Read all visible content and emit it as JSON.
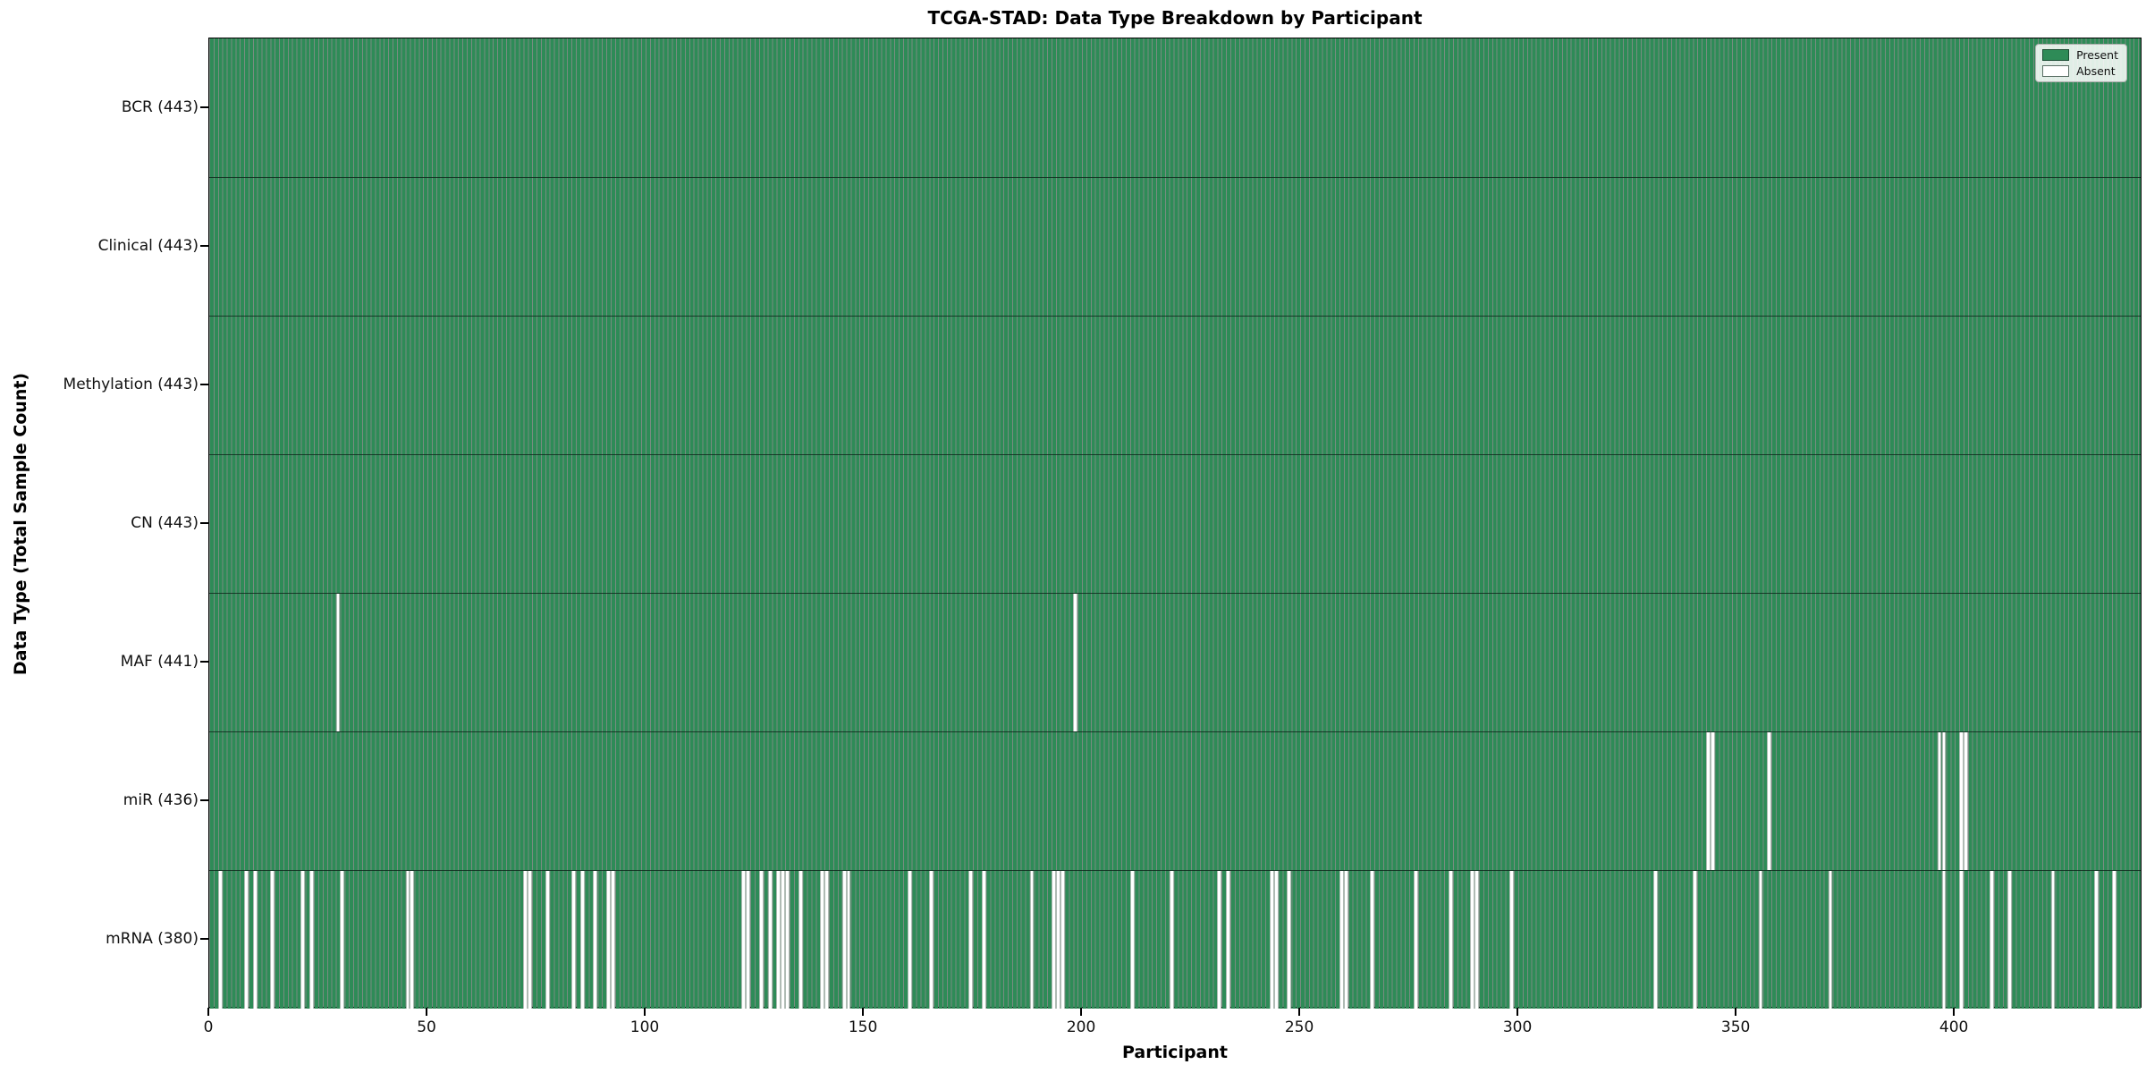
{
  "title": "TCGA-STAD: Data Type Breakdown by Participant",
  "xlabel": "Participant",
  "ylabel": "Data Type (Total Sample Count)",
  "legend": {
    "present_label": "Present",
    "absent_label": "Absent"
  },
  "colors": {
    "present": "#2e8b57",
    "absent": "#ffffff",
    "bar_edge": "rgba(10,45,26,0.55)",
    "spine": "#000000"
  },
  "chart_data": {
    "type": "heatmap",
    "description": "Per-participant data availability matrix; green vertical bar = sample present, white gap = sample absent",
    "n_participants": 443,
    "x_ticks": [
      0,
      50,
      100,
      150,
      200,
      250,
      300,
      350,
      400
    ],
    "x_range": [
      0,
      443
    ],
    "grid": false,
    "legend_position": "upper right",
    "rows": [
      {
        "data_type": "BCR",
        "label": "BCR (443)",
        "total": 443,
        "absent_participants": []
      },
      {
        "data_type": "Clinical",
        "label": "Clinical (443)",
        "total": 443,
        "absent_participants": []
      },
      {
        "data_type": "Methylation",
        "label": "Methylation (443)",
        "total": 443,
        "absent_participants": []
      },
      {
        "data_type": "CN",
        "label": "CN (443)",
        "total": 443,
        "absent_participants": []
      },
      {
        "data_type": "MAF",
        "label": "MAF (441)",
        "total": 441,
        "absent_participants": [
          29,
          198
        ]
      },
      {
        "data_type": "miR",
        "label": "miR (436)",
        "total": 436,
        "absent_participants": [
          343,
          344,
          357,
          396,
          397,
          401,
          402
        ]
      },
      {
        "data_type": "mRNA",
        "label": "mRNA (380)",
        "total": 380,
        "absent_participants": [
          2,
          8,
          10,
          14,
          21,
          23,
          30,
          45,
          46,
          72,
          73,
          77,
          83,
          85,
          88,
          91,
          92,
          122,
          123,
          126,
          128,
          130,
          131,
          132,
          135,
          140,
          141,
          145,
          146,
          160,
          165,
          174,
          177,
          188,
          193,
          194,
          195,
          211,
          220,
          231,
          233,
          243,
          244,
          247,
          259,
          260,
          266,
          276,
          284,
          289,
          290,
          298,
          331,
          340,
          355,
          371,
          397,
          401,
          408,
          412,
          422,
          432,
          436
        ]
      }
    ],
    "legend_entries": [
      {
        "label": "Present",
        "color": "#2e8b57"
      },
      {
        "label": "Absent",
        "color": "#ffffff"
      }
    ]
  }
}
